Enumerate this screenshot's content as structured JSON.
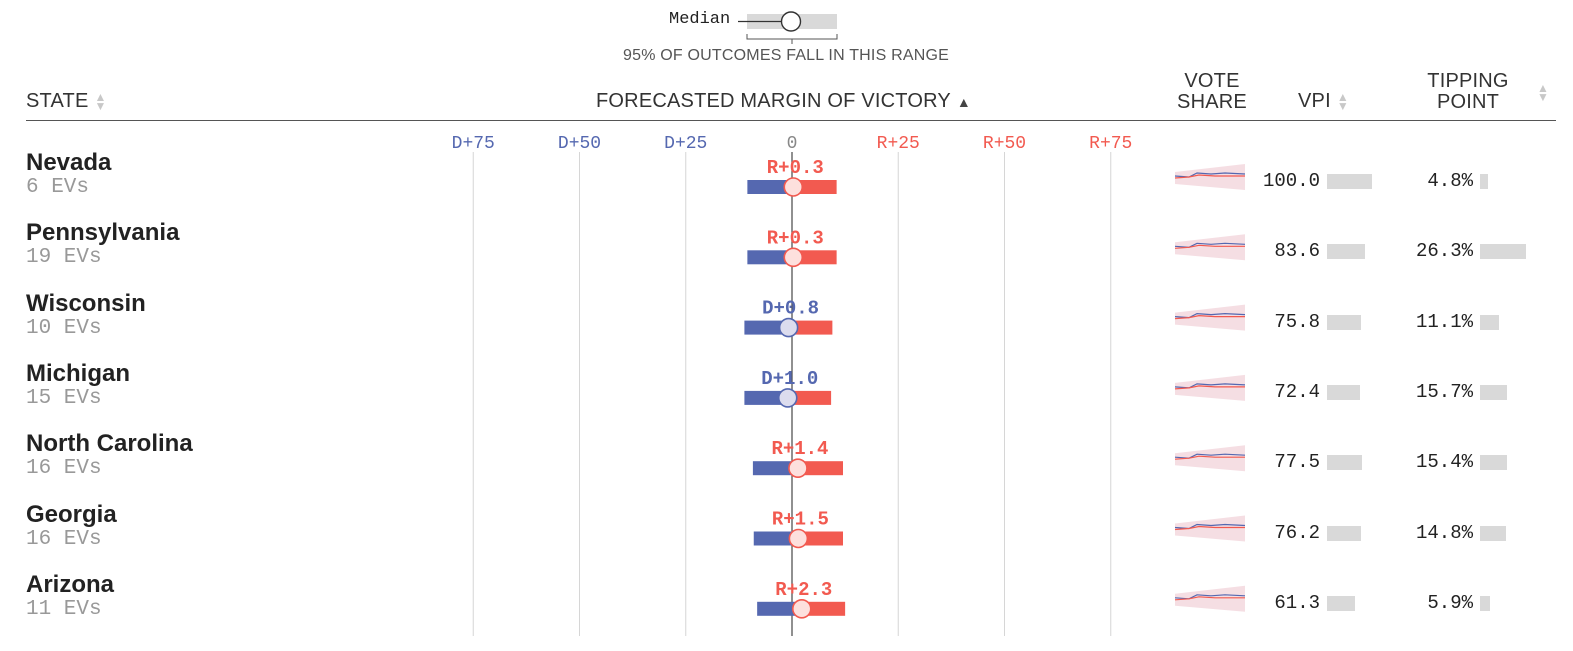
{
  "legend": {
    "median_label": "Median",
    "range_caption": "95% OF OUTCOMES FALL IN THIS RANGE"
  },
  "headers": {
    "state": "STATE",
    "margin": "FORECASTED MARGIN OF VICTORY",
    "vote_share_line1": "VOTE",
    "vote_share_line2": "SHARE",
    "vpi": "VPI",
    "tipping_line1": "TIPPING",
    "tipping_line2": "POINT"
  },
  "colors": {
    "dem": "#5568b0",
    "rep": "#f25a50",
    "grid": "#d6d6d6",
    "grey_bar": "#d9d9d9"
  },
  "chart_data": {
    "type": "bar",
    "title": "FORECASTED MARGIN OF VICTORY",
    "axis_ticks": [
      {
        "label": "D+75",
        "value": -75
      },
      {
        "label": "D+50",
        "value": -50
      },
      {
        "label": "D+25",
        "value": -25
      },
      {
        "label": "0",
        "value": 0
      },
      {
        "label": "R+25",
        "value": 25
      },
      {
        "label": "R+50",
        "value": 50
      },
      {
        "label": "R+75",
        "value": 75
      }
    ],
    "xlim": [
      -75,
      75
    ],
    "states": [
      {
        "name": "Nevada",
        "evs": "6 EVs",
        "margin_label": "R+0.3",
        "median": 0.3,
        "low": -10.5,
        "high": 10.5,
        "vpi": 100.0,
        "vpi_label": "100.0",
        "tipping": 4.8,
        "tipping_label": "4.8%"
      },
      {
        "name": "Pennsylvania",
        "evs": "19 EVs",
        "margin_label": "R+0.3",
        "median": 0.3,
        "low": -10.5,
        "high": 10.5,
        "vpi": 83.6,
        "vpi_label": "83.6",
        "tipping": 26.3,
        "tipping_label": "26.3%"
      },
      {
        "name": "Wisconsin",
        "evs": "10 EVs",
        "margin_label": "D+0.8",
        "median": -0.8,
        "low": -11.2,
        "high": 9.5,
        "vpi": 75.8,
        "vpi_label": "75.8",
        "tipping": 11.1,
        "tipping_label": "11.1%"
      },
      {
        "name": "Michigan",
        "evs": "15 EVs",
        "margin_label": "D+1.0",
        "median": -1.0,
        "low": -11.2,
        "high": 9.2,
        "vpi": 72.4,
        "vpi_label": "72.4",
        "tipping": 15.7,
        "tipping_label": "15.7%"
      },
      {
        "name": "North Carolina",
        "evs": "16 EVs",
        "margin_label": "R+1.4",
        "median": 1.4,
        "low": -9.2,
        "high": 12.0,
        "vpi": 77.5,
        "vpi_label": "77.5",
        "tipping": 15.4,
        "tipping_label": "15.4%"
      },
      {
        "name": "Georgia",
        "evs": "16 EVs",
        "margin_label": "R+1.5",
        "median": 1.5,
        "low": -9.0,
        "high": 12.0,
        "vpi": 76.2,
        "vpi_label": "76.2",
        "tipping": 14.8,
        "tipping_label": "14.8%"
      },
      {
        "name": "Arizona",
        "evs": "11 EVs",
        "margin_label": "R+2.3",
        "median": 2.3,
        "low": -8.2,
        "high": 12.5,
        "vpi": 61.3,
        "vpi_label": "61.3",
        "tipping": 5.9,
        "tipping_label": "5.9%"
      }
    ]
  }
}
